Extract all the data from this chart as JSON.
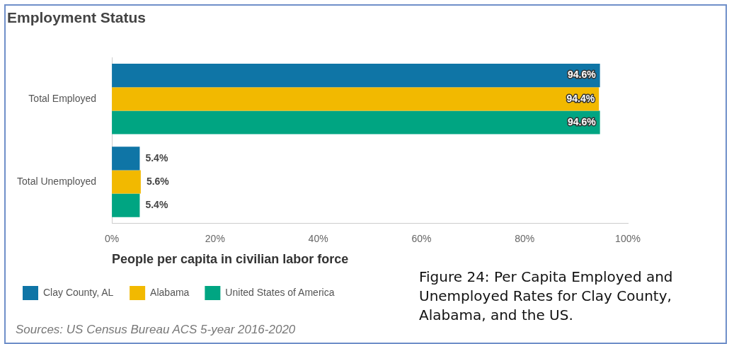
{
  "chart_data": {
    "type": "bar",
    "orientation": "horizontal",
    "title": "Employment Status",
    "xlabel": "People per capita in civilian labor force",
    "categories": [
      "Total Employed",
      "Total Unemployed"
    ],
    "series": [
      {
        "name": "Clay County, AL",
        "color": "#0f75a6",
        "values": [
          94.6,
          5.4
        ],
        "value_labels": [
          "94.6%",
          "5.4%"
        ]
      },
      {
        "name": "Alabama",
        "color": "#f2b900",
        "values": [
          94.4,
          5.6
        ],
        "value_labels": [
          "94.4%",
          "5.6%"
        ]
      },
      {
        "name": "United States of America",
        "color": "#00a582",
        "values": [
          94.6,
          5.4
        ],
        "value_labels": [
          "94.6%",
          "5.4%"
        ]
      }
    ],
    "xlim": [
      0,
      100
    ],
    "xticks": [
      {
        "value": 0,
        "label": "0%"
      },
      {
        "value": 20,
        "label": "20%"
      },
      {
        "value": 40,
        "label": "40%"
      },
      {
        "value": 60,
        "label": "60%"
      },
      {
        "value": 80,
        "label": "80%"
      },
      {
        "value": 100,
        "label": "100%"
      }
    ],
    "legend": "bottom left",
    "annotations": [
      "Sources: US Census Bureau ACS 5-year 2016-2020",
      "Figure 24: Per Capita Employed and Unemployed Rates for Clay County, Alabama, and the US."
    ]
  }
}
